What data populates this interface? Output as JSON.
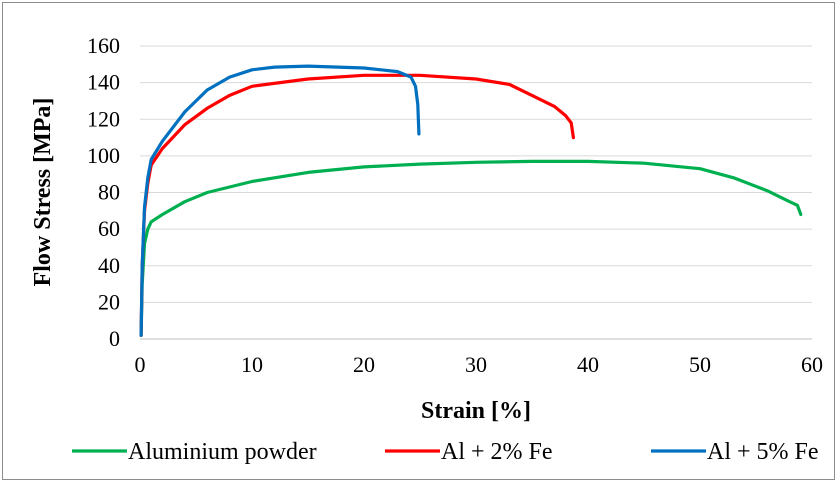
{
  "chart_data": {
    "type": "line",
    "title": "",
    "xlabel": "Strain [%]",
    "ylabel": "Flow Stress [MPa]",
    "xlim": [
      0,
      60
    ],
    "ylim": [
      0,
      160
    ],
    "xticks": [
      0,
      10,
      20,
      30,
      40,
      50,
      60
    ],
    "yticks": [
      0,
      20,
      40,
      60,
      80,
      100,
      120,
      140,
      160
    ],
    "grid": "horizontal",
    "legend_position": "bottom",
    "series": [
      {
        "name": "Aluminium powder",
        "color": "#00b050",
        "points": [
          [
            0.1,
            2
          ],
          [
            0.2,
            30
          ],
          [
            0.4,
            52
          ],
          [
            0.7,
            60
          ],
          [
            1,
            64
          ],
          [
            2,
            68
          ],
          [
            4,
            75
          ],
          [
            6,
            80
          ],
          [
            10,
            86
          ],
          [
            15,
            91
          ],
          [
            20,
            94
          ],
          [
            25,
            95.5
          ],
          [
            30,
            96.5
          ],
          [
            35,
            97
          ],
          [
            40,
            97
          ],
          [
            45,
            96
          ],
          [
            50,
            93
          ],
          [
            53,
            88
          ],
          [
            56,
            81
          ],
          [
            58,
            75
          ],
          [
            58.7,
            73
          ],
          [
            59,
            68
          ]
        ]
      },
      {
        "name": "Al + 2% Fe",
        "color": "#ff0000",
        "points": [
          [
            0.1,
            2
          ],
          [
            0.2,
            40
          ],
          [
            0.4,
            70
          ],
          [
            0.7,
            85
          ],
          [
            1,
            95
          ],
          [
            2,
            104
          ],
          [
            4,
            117
          ],
          [
            6,
            126
          ],
          [
            8,
            133
          ],
          [
            10,
            138
          ],
          [
            15,
            142
          ],
          [
            20,
            144
          ],
          [
            25,
            144
          ],
          [
            30,
            142
          ],
          [
            33,
            139
          ],
          [
            35,
            133
          ],
          [
            37,
            127
          ],
          [
            38,
            122
          ],
          [
            38.5,
            118
          ],
          [
            38.7,
            110
          ]
        ]
      },
      {
        "name": "Al + 5% Fe",
        "color": "#0070c0",
        "points": [
          [
            0.1,
            2
          ],
          [
            0.2,
            40
          ],
          [
            0.4,
            72
          ],
          [
            0.7,
            88
          ],
          [
            1,
            98
          ],
          [
            2,
            108
          ],
          [
            4,
            124
          ],
          [
            6,
            136
          ],
          [
            8,
            143
          ],
          [
            10,
            147
          ],
          [
            12,
            148.5
          ],
          [
            15,
            149
          ],
          [
            20,
            148
          ],
          [
            23,
            146
          ],
          [
            24.2,
            143
          ],
          [
            24.6,
            138
          ],
          [
            24.8,
            128
          ],
          [
            24.9,
            112
          ]
        ]
      }
    ]
  }
}
